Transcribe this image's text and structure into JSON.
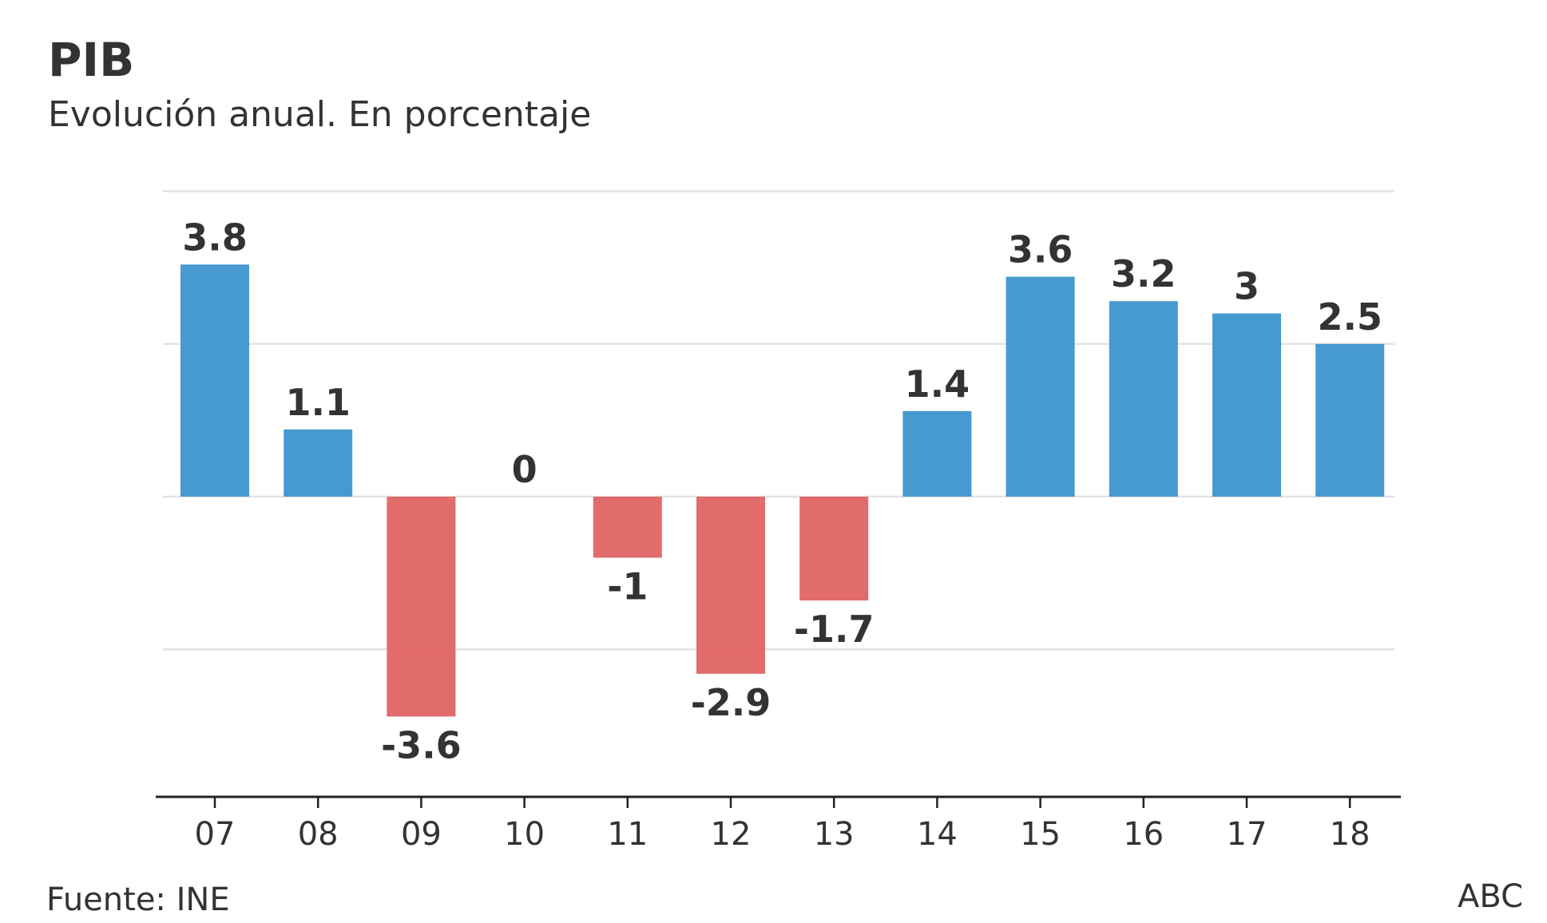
{
  "chart_data": {
    "type": "bar",
    "title": "PIB",
    "subtitle": "Evolución anual. En porcentaje",
    "categories": [
      "07",
      "08",
      "09",
      "10",
      "11",
      "12",
      "13",
      "14",
      "15",
      "16",
      "17",
      "18"
    ],
    "values": [
      3.8,
      1.1,
      -3.6,
      0,
      -1,
      -2.9,
      -1.7,
      1.4,
      3.6,
      3.2,
      3,
      2.5
    ],
    "value_labels": [
      "3.8",
      "1.1",
      "-3.6",
      "0",
      "-1",
      "-2.9",
      "-1.7",
      "1.4",
      "3.6",
      "3.2",
      "3",
      "2.5"
    ],
    "ylim": [
      -5,
      5
    ],
    "gridlines": [
      -2.5,
      0,
      2.5,
      5
    ],
    "grid": true,
    "xlabel": "",
    "ylabel": "",
    "colors": {
      "positive": "#3d95cd",
      "negative": "#e06363",
      "grid": "#e3e3e3",
      "axis": "#222222",
      "text": "#333333"
    }
  },
  "footer": {
    "source": "Fuente: INE",
    "brand": "ABC"
  }
}
